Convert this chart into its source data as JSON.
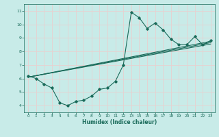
{
  "xlabel": "Humidex (Indice chaleur)",
  "bg_color": "#c8ebe8",
  "grid_color": "#c0deda",
  "line_color": "#1a6b5a",
  "xlim": [
    -0.5,
    23.5
  ],
  "ylim": [
    3.5,
    11.5
  ],
  "xticks": [
    0,
    1,
    2,
    3,
    4,
    5,
    6,
    7,
    8,
    9,
    10,
    11,
    12,
    13,
    14,
    15,
    16,
    17,
    18,
    19,
    20,
    21,
    22,
    23
  ],
  "yticks": [
    4,
    5,
    6,
    7,
    8,
    9,
    10,
    11
  ],
  "line1": [
    6.2,
    6.0,
    5.6,
    5.3,
    4.2,
    4.0,
    4.3,
    4.4,
    4.7,
    5.2,
    5.3,
    5.8,
    7.0,
    10.9,
    10.5,
    9.7,
    10.1,
    9.6,
    8.9,
    8.5,
    8.5,
    9.1,
    8.5,
    8.8
  ],
  "line2_x": [
    0,
    23
  ],
  "line2_y": [
    6.1,
    8.75
  ],
  "line3_x": [
    0,
    23
  ],
  "line3_y": [
    6.1,
    8.55
  ],
  "line4_x": [
    0,
    23
  ],
  "line4_y": [
    6.1,
    8.65
  ]
}
